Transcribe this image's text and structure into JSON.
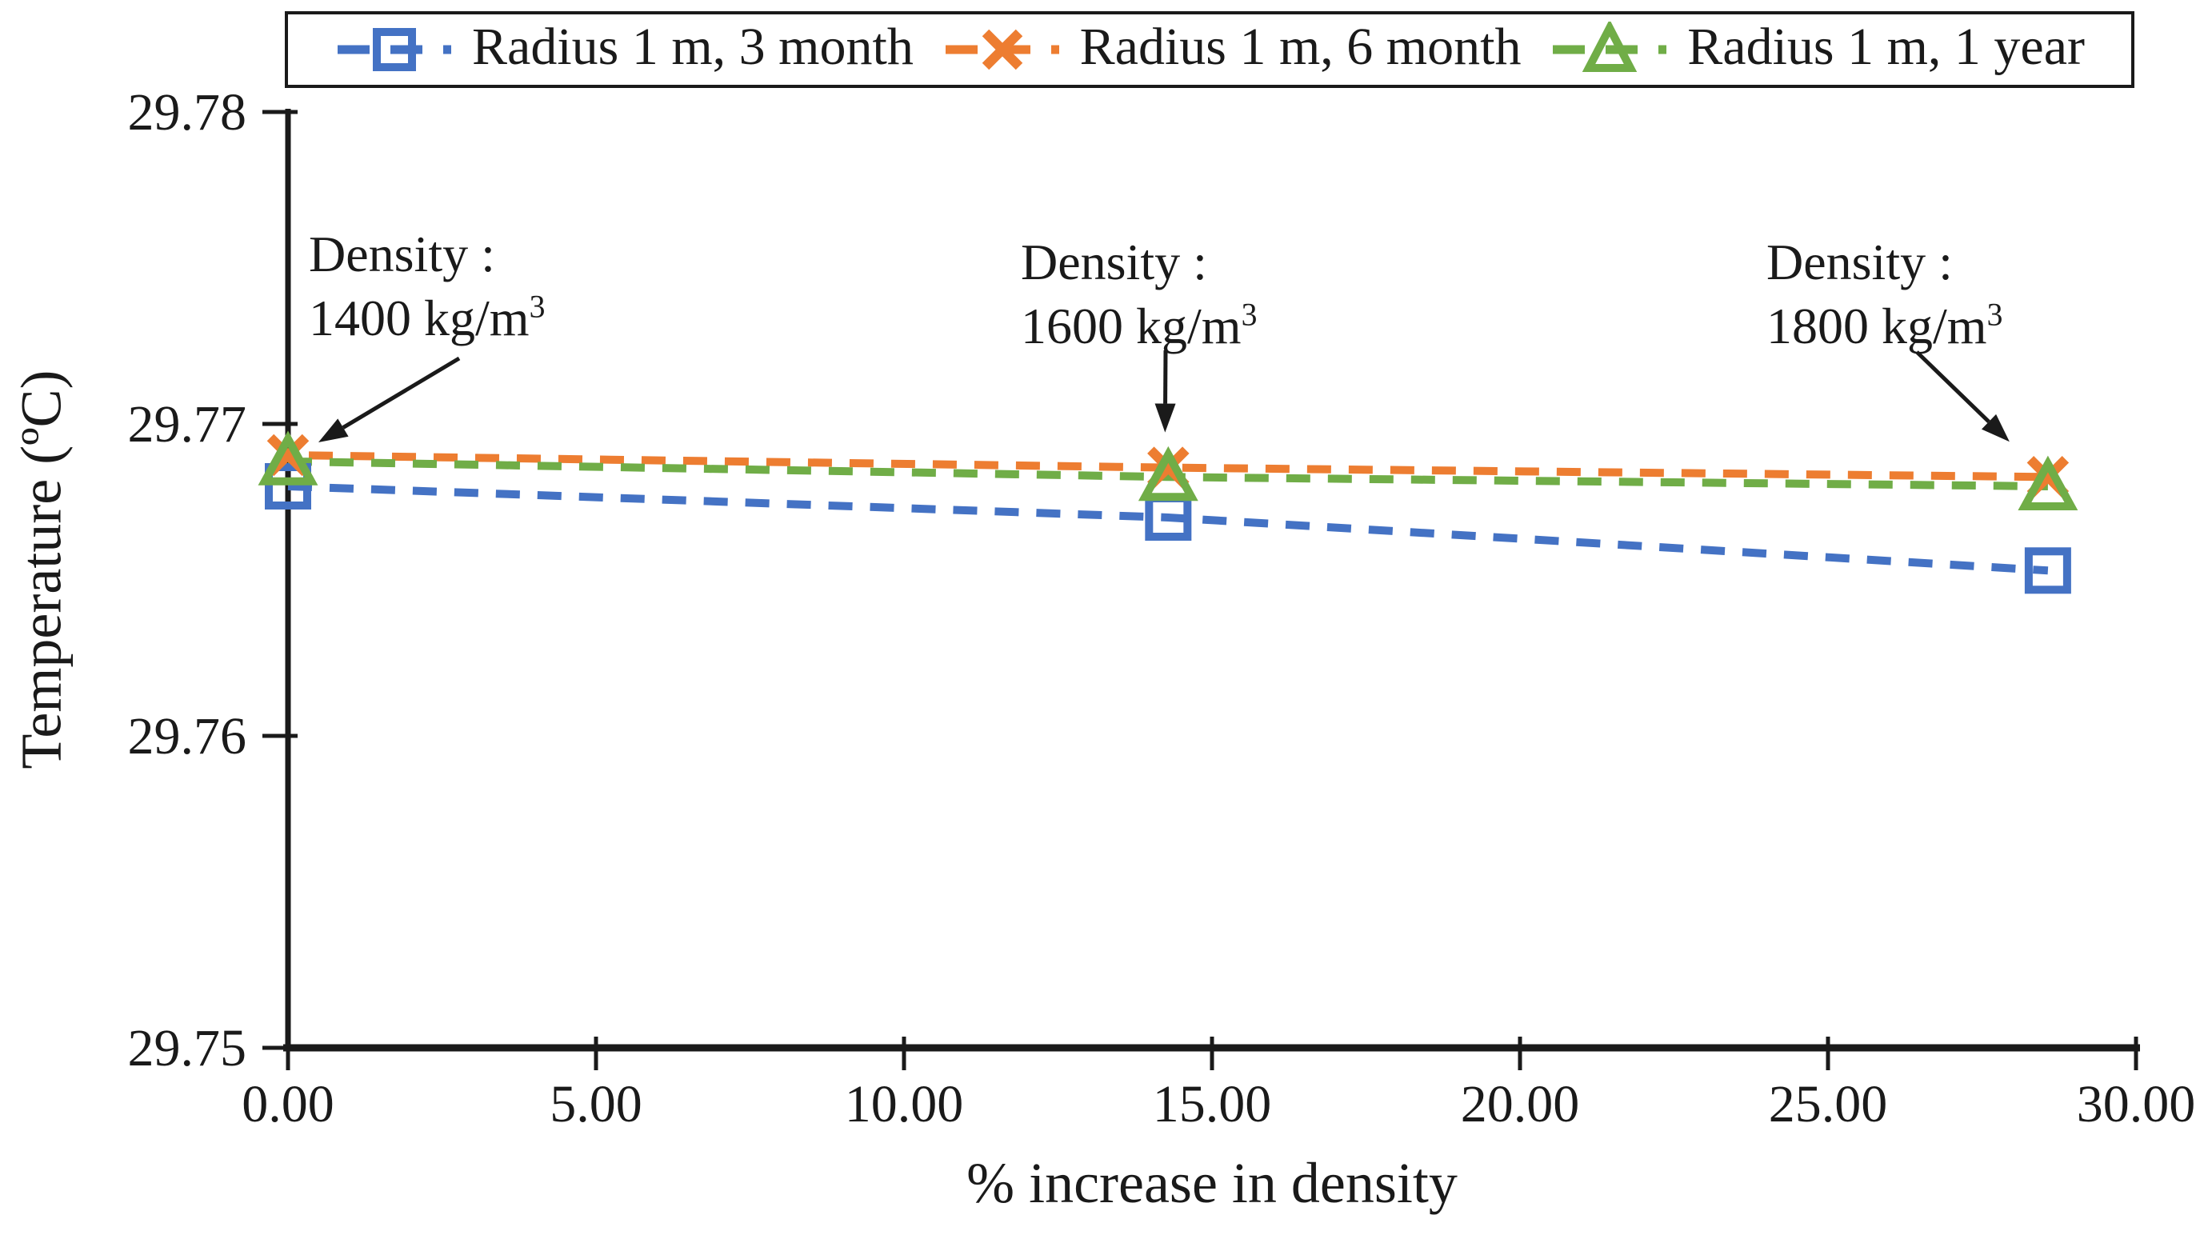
{
  "figure": {
    "background": "#ffffff",
    "text_color": "#1a1a1a"
  },
  "chart_data": {
    "type": "line",
    "title": "",
    "xlabel": "% increase in density",
    "ylabel": "Temperature (ºC)",
    "xlim": [
      0,
      30
    ],
    "ylim": [
      29.75,
      29.78
    ],
    "x_tick_values": [
      0,
      5,
      10,
      15,
      20,
      25,
      30
    ],
    "x_tick_labels": [
      "0.00",
      "5.00",
      "10.00",
      "15.00",
      "20.00",
      "25.00",
      "30.00"
    ],
    "y_tick_values": [
      29.75,
      29.76,
      29.77,
      29.78
    ],
    "y_tick_labels": [
      "29.75",
      "29.76",
      "29.77",
      "29.78"
    ],
    "grid": false,
    "legend_position": "top",
    "x": [
      0,
      14.29,
      28.57
    ],
    "series": [
      {
        "name": "Radius 1 m, 3 month",
        "color": "#4472C4",
        "marker": "square",
        "line_style": "dashed",
        "values": [
          29.768,
          29.767,
          29.7653
        ]
      },
      {
        "name": "Radius 1 m, 6 month",
        "color": "#ED7D31",
        "marker": "x",
        "line_style": "dashed",
        "values": [
          29.769,
          29.7686,
          29.7683
        ]
      },
      {
        "name": "Radius 1 m, 1 year",
        "color": "#70AD47",
        "marker": "triangle",
        "line_style": "dashed",
        "values": [
          29.7688,
          29.7683,
          29.768
        ]
      }
    ],
    "annotations": [
      {
        "line1": "Density :",
        "line2_text": "1400 kg/m",
        "line2_sup": "3",
        "target_x": 0
      },
      {
        "line1": "Density :",
        "line2_text": "1600 kg/m",
        "line2_sup": "3",
        "target_x": 14.29
      },
      {
        "line1": "Density :",
        "line2_text": "1800 kg/m",
        "line2_sup": "3",
        "target_x": 28.57
      }
    ]
  }
}
